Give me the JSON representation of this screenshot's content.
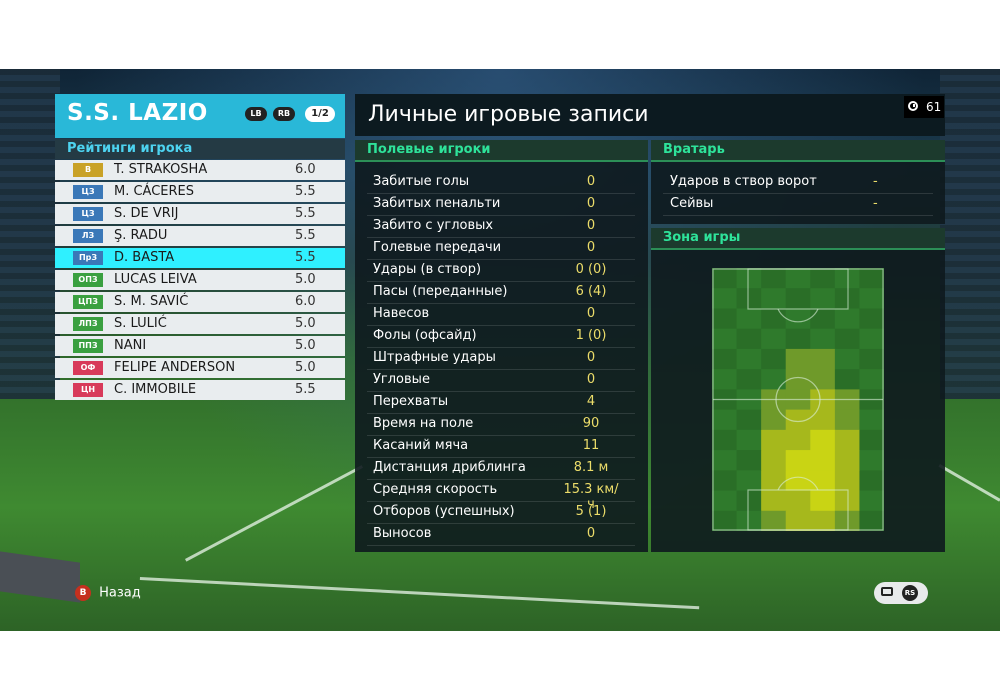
{
  "team": {
    "name": "S.S. LAZIO",
    "lb_label": "LB",
    "rb_label": "RB",
    "page_indicator": "1/2"
  },
  "ratings_title": "Рейтинги игрока",
  "players": [
    {
      "pos": "В",
      "pos_color": "#c9a227",
      "name": "T. STRAKOSHA",
      "rating": "6.0"
    },
    {
      "pos": "ЦЗ",
      "pos_color": "#3a78b8",
      "name": "M. CÁCERES",
      "rating": "5.5"
    },
    {
      "pos": "ЦЗ",
      "pos_color": "#3a78b8",
      "name": "S. DE VRIJ",
      "rating": "5.5"
    },
    {
      "pos": "ЛЗ",
      "pos_color": "#3a78b8",
      "name": "Ş. RADU",
      "rating": "5.5"
    },
    {
      "pos": "ПрЗ",
      "pos_color": "#3a78b8",
      "name": "D. BASTA",
      "rating": "5.5"
    },
    {
      "pos": "ОПЗ",
      "pos_color": "#3aa040",
      "name": "LUCAS LEIVA",
      "rating": "5.0"
    },
    {
      "pos": "ЦПЗ",
      "pos_color": "#3aa040",
      "name": "S. M. SAVIĆ",
      "rating": "6.0"
    },
    {
      "pos": "ЛПЗ",
      "pos_color": "#3aa040",
      "name": "S. LULIĆ",
      "rating": "5.0"
    },
    {
      "pos": "ППЗ",
      "pos_color": "#3aa040",
      "name": "NANI",
      "rating": "5.0"
    },
    {
      "pos": "ОФ",
      "pos_color": "#d83a5a",
      "name": "FELIPE ANDERSON",
      "rating": "5.0"
    },
    {
      "pos": "ЦН",
      "pos_color": "#d83a5a",
      "name": "C. IMMOBILE",
      "rating": "5.5"
    }
  ],
  "selected_player_index": 4,
  "main": {
    "title": "Личные игровые записи",
    "timer_value": "61"
  },
  "field_players": {
    "heading": "Полевые игроки",
    "stats": [
      {
        "label": "Забитые голы",
        "value": "0"
      },
      {
        "label": "Забитых пенальти",
        "value": "0"
      },
      {
        "label": "Забито с угловых",
        "value": "0"
      },
      {
        "label": "Голевые передачи",
        "value": "0"
      },
      {
        "label": "Удары (в створ)",
        "value": "0 (0)"
      },
      {
        "label": "Пасы (переданные)",
        "value": "6 (4)"
      },
      {
        "label": "Навесов",
        "value": "0"
      },
      {
        "label": "Фолы (офсайд)",
        "value": "1 (0)"
      },
      {
        "label": "Штрафные удары",
        "value": "0"
      },
      {
        "label": "Угловые",
        "value": "0"
      },
      {
        "label": "Перехваты",
        "value": "4"
      },
      {
        "label": "Время на поле",
        "value": "90"
      },
      {
        "label": "Касаний мяча",
        "value": "11"
      },
      {
        "label": "Дистанция дриблинга",
        "value": "8.1 м"
      },
      {
        "label": "Средняя скорость",
        "value": "15.3 км/ч"
      },
      {
        "label": "Отборов (успешных)",
        "value": "5 (1)"
      },
      {
        "label": "Выносов",
        "value": "0"
      }
    ]
  },
  "goalkeeper": {
    "heading": "Вратарь",
    "stats": [
      {
        "label": "Ударов в створ ворот",
        "value": "-"
      },
      {
        "label": "Сейвы",
        "value": "-"
      }
    ]
  },
  "zone": {
    "heading": "Зона игры",
    "heat_grid": [
      [
        0,
        0,
        0,
        0,
        0,
        0,
        0
      ],
      [
        0,
        0,
        0,
        0,
        0,
        0,
        0
      ],
      [
        0,
        0,
        0,
        0,
        0,
        0,
        0
      ],
      [
        0,
        0,
        0,
        0,
        0,
        0,
        0
      ],
      [
        0,
        0,
        0,
        1,
        1,
        0,
        0
      ],
      [
        0,
        0,
        0,
        1,
        1,
        0,
        0
      ],
      [
        0,
        0,
        1,
        1,
        2,
        1,
        0
      ],
      [
        0,
        0,
        1,
        2,
        2,
        1,
        0
      ],
      [
        0,
        0,
        2,
        2,
        3,
        2,
        0
      ],
      [
        0,
        0,
        2,
        3,
        3,
        2,
        0
      ],
      [
        0,
        0,
        2,
        3,
        3,
        2,
        0
      ],
      [
        0,
        0,
        2,
        2,
        3,
        2,
        0
      ],
      [
        0,
        0,
        1,
        2,
        2,
        1,
        0
      ]
    ],
    "heat_colors": [
      "#2f7a2c",
      "#6f9a2a",
      "#a6b81c",
      "#c9d414"
    ]
  },
  "footer": {
    "back_button": "B",
    "back_label": "Назад",
    "rs_label": "RS"
  }
}
